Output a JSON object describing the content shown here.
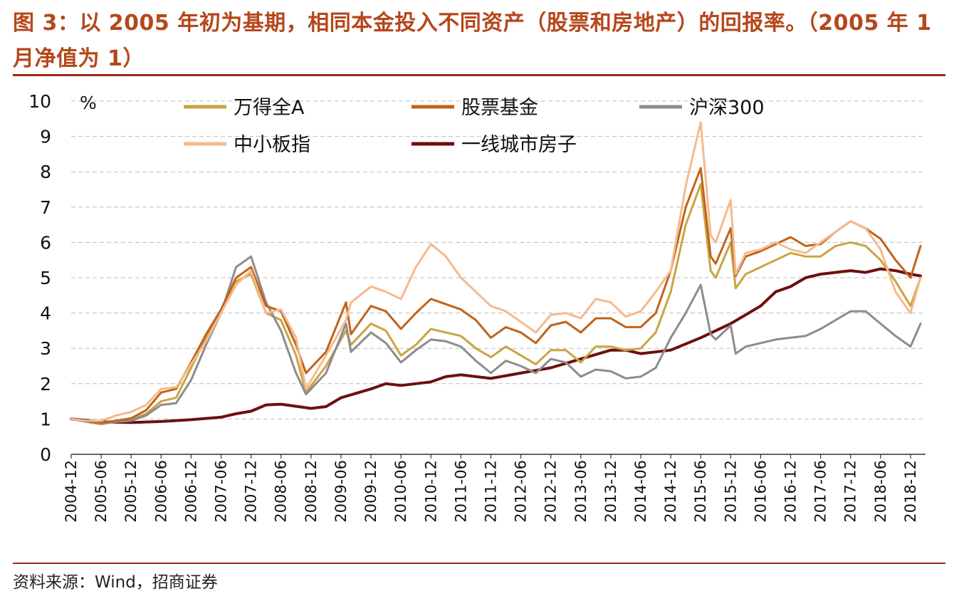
{
  "header": {
    "title": "图 3：以 2005 年初为基期，相同本金投入不同资产（股票和房地产）的回报率。（2005 年 1 月净值为 1）"
  },
  "footer": {
    "source": "资料来源：Wind，招商证券"
  },
  "chart_data": {
    "type": "line",
    "ylabel": "%",
    "ylim": [
      0,
      10
    ],
    "yticks": [
      0,
      1,
      2,
      3,
      4,
      5,
      6,
      7,
      8,
      9,
      10
    ],
    "xlim": [
      "2004-12",
      "2019-03"
    ],
    "xticks": [
      "2004-12",
      "2005-06",
      "2005-12",
      "2006-06",
      "2006-12",
      "2007-06",
      "2007-12",
      "2008-06",
      "2008-12",
      "2009-06",
      "2009-12",
      "2010-06",
      "2010-12",
      "2011-06",
      "2011-12",
      "2012-06",
      "2012-12",
      "2013-06",
      "2013-12",
      "2014-06",
      "2014-12",
      "2015-06",
      "2015-12",
      "2016-06",
      "2016-12",
      "2017-06",
      "2017-12",
      "2018-06",
      "2018-12"
    ],
    "grid": "horizontal",
    "legend_position": "top",
    "series": [
      {
        "name": "万得全A",
        "color": "#c9a441",
        "width": 3,
        "x": [
          "2004-12",
          "2005-03",
          "2005-06",
          "2005-09",
          "2005-12",
          "2006-03",
          "2006-06",
          "2006-09",
          "2006-12",
          "2007-03",
          "2007-06",
          "2007-09",
          "2007-12",
          "2008-03",
          "2008-06",
          "2008-09",
          "2008-11",
          "2009-03",
          "2009-07",
          "2009-08",
          "2009-12",
          "2010-03",
          "2010-06",
          "2010-09",
          "2010-12",
          "2011-03",
          "2011-06",
          "2011-09",
          "2011-12",
          "2012-03",
          "2012-06",
          "2012-09",
          "2012-12",
          "2013-03",
          "2013-06",
          "2013-09",
          "2013-12",
          "2014-03",
          "2014-06",
          "2014-09",
          "2014-12",
          "2015-03",
          "2015-06",
          "2015-08",
          "2015-09",
          "2015-12",
          "2016-01",
          "2016-03",
          "2016-06",
          "2016-09",
          "2016-12",
          "2017-03",
          "2017-06",
          "2017-09",
          "2017-12",
          "2018-03",
          "2018-06",
          "2018-09",
          "2018-12",
          "2019-02"
        ],
        "values": [
          1.0,
          0.92,
          0.85,
          0.93,
          0.98,
          1.15,
          1.5,
          1.6,
          2.45,
          3.3,
          4.0,
          4.9,
          5.1,
          4.0,
          3.8,
          2.8,
          1.75,
          2.5,
          3.5,
          3.1,
          3.7,
          3.5,
          2.8,
          3.1,
          3.55,
          3.45,
          3.35,
          3.0,
          2.75,
          3.05,
          2.8,
          2.55,
          2.95,
          2.95,
          2.6,
          3.05,
          3.05,
          2.95,
          3.0,
          3.45,
          4.6,
          6.5,
          7.65,
          5.2,
          5.0,
          6.0,
          4.7,
          5.1,
          5.3,
          5.5,
          5.7,
          5.6,
          5.6,
          5.9,
          6.0,
          5.9,
          5.5,
          4.9,
          4.2,
          5.0
        ]
      },
      {
        "name": "股票基金",
        "color": "#c0631a",
        "width": 3,
        "x": [
          "2004-12",
          "2005-03",
          "2005-06",
          "2005-09",
          "2005-12",
          "2006-03",
          "2006-06",
          "2006-09",
          "2006-12",
          "2007-03",
          "2007-06",
          "2007-09",
          "2007-12",
          "2008-03",
          "2008-06",
          "2008-09",
          "2008-11",
          "2009-03",
          "2009-07",
          "2009-08",
          "2009-12",
          "2010-03",
          "2010-06",
          "2010-09",
          "2010-12",
          "2011-03",
          "2011-06",
          "2011-09",
          "2011-12",
          "2012-03",
          "2012-06",
          "2012-09",
          "2012-12",
          "2013-03",
          "2013-06",
          "2013-09",
          "2013-12",
          "2014-03",
          "2014-06",
          "2014-09",
          "2014-12",
          "2015-03",
          "2015-06",
          "2015-08",
          "2015-09",
          "2015-12",
          "2016-01",
          "2016-03",
          "2016-06",
          "2016-09",
          "2016-12",
          "2017-03",
          "2017-06",
          "2017-09",
          "2017-12",
          "2018-03",
          "2018-06",
          "2018-09",
          "2018-12",
          "2019-02"
        ],
        "values": [
          1.0,
          0.95,
          0.9,
          0.95,
          1.02,
          1.25,
          1.75,
          1.85,
          2.6,
          3.4,
          4.1,
          5.0,
          5.3,
          4.2,
          4.05,
          3.1,
          2.3,
          2.9,
          4.3,
          3.4,
          4.2,
          4.05,
          3.55,
          4.0,
          4.4,
          4.25,
          4.1,
          3.8,
          3.3,
          3.6,
          3.45,
          3.15,
          3.65,
          3.75,
          3.45,
          3.85,
          3.85,
          3.6,
          3.6,
          4.0,
          5.2,
          7.0,
          8.1,
          5.6,
          5.4,
          6.4,
          5.05,
          5.6,
          5.75,
          5.95,
          6.15,
          5.9,
          5.95,
          6.3,
          6.6,
          6.4,
          6.1,
          5.5,
          5.0,
          5.9
        ]
      },
      {
        "name": "沪深300",
        "color": "#8c8c8c",
        "width": 3,
        "x": [
          "2004-12",
          "2005-03",
          "2005-06",
          "2005-09",
          "2005-12",
          "2006-03",
          "2006-06",
          "2006-09",
          "2006-12",
          "2007-03",
          "2007-06",
          "2007-09",
          "2007-12",
          "2008-03",
          "2008-06",
          "2008-09",
          "2008-11",
          "2009-03",
          "2009-07",
          "2009-08",
          "2009-12",
          "2010-03",
          "2010-06",
          "2010-09",
          "2010-12",
          "2011-03",
          "2011-06",
          "2011-09",
          "2011-12",
          "2012-03",
          "2012-06",
          "2012-09",
          "2012-12",
          "2013-03",
          "2013-06",
          "2013-09",
          "2013-12",
          "2014-03",
          "2014-06",
          "2014-09",
          "2014-12",
          "2015-03",
          "2015-06",
          "2015-08",
          "2015-09",
          "2015-12",
          "2016-01",
          "2016-03",
          "2016-06",
          "2016-09",
          "2016-12",
          "2017-03",
          "2017-06",
          "2017-09",
          "2017-12",
          "2018-03",
          "2018-06",
          "2018-09",
          "2018-12",
          "2019-02"
        ],
        "values": [
          1.0,
          0.93,
          0.88,
          0.92,
          0.95,
          1.1,
          1.4,
          1.45,
          2.1,
          3.1,
          4.0,
          5.3,
          5.6,
          4.3,
          3.5,
          2.3,
          1.7,
          2.3,
          3.7,
          2.9,
          3.45,
          3.15,
          2.6,
          2.95,
          3.25,
          3.2,
          3.05,
          2.65,
          2.3,
          2.65,
          2.5,
          2.3,
          2.7,
          2.6,
          2.2,
          2.4,
          2.35,
          2.15,
          2.2,
          2.45,
          3.3,
          4.0,
          4.8,
          3.4,
          3.25,
          3.65,
          2.85,
          3.05,
          3.15,
          3.25,
          3.3,
          3.35,
          3.55,
          3.8,
          4.05,
          4.05,
          3.7,
          3.35,
          3.05,
          3.7
        ]
      },
      {
        "name": "中小板指",
        "color": "#f6b98e",
        "width": 3,
        "x": [
          "2004-12",
          "2005-03",
          "2005-06",
          "2005-09",
          "2005-12",
          "2006-03",
          "2006-06",
          "2006-09",
          "2006-12",
          "2007-03",
          "2007-06",
          "2007-09",
          "2007-12",
          "2008-03",
          "2008-06",
          "2008-09",
          "2008-11",
          "2009-03",
          "2009-07",
          "2009-08",
          "2009-12",
          "2010-03",
          "2010-06",
          "2010-09",
          "2010-12",
          "2011-03",
          "2011-06",
          "2011-09",
          "2011-12",
          "2012-03",
          "2012-06",
          "2012-09",
          "2012-12",
          "2013-03",
          "2013-06",
          "2013-09",
          "2013-12",
          "2014-03",
          "2014-06",
          "2014-09",
          "2014-12",
          "2015-03",
          "2015-06",
          "2015-08",
          "2015-09",
          "2015-12",
          "2016-01",
          "2016-03",
          "2016-06",
          "2016-09",
          "2016-12",
          "2017-03",
          "2017-06",
          "2017-09",
          "2017-12",
          "2018-03",
          "2018-06",
          "2018-09",
          "2018-12",
          "2019-02"
        ],
        "values": [
          1.0,
          0.95,
          0.95,
          1.1,
          1.2,
          1.4,
          1.85,
          1.9,
          2.55,
          3.2,
          4.0,
          4.8,
          5.2,
          4.0,
          4.1,
          3.3,
          1.85,
          2.8,
          3.8,
          4.3,
          4.75,
          4.6,
          4.4,
          5.3,
          5.95,
          5.6,
          5.0,
          4.6,
          4.2,
          4.05,
          3.75,
          3.45,
          3.95,
          4.0,
          3.85,
          4.4,
          4.3,
          3.9,
          4.05,
          4.6,
          5.2,
          7.6,
          9.4,
          6.2,
          6.0,
          7.2,
          5.1,
          5.7,
          5.8,
          6.0,
          5.8,
          5.7,
          6.0,
          6.3,
          6.6,
          6.4,
          5.8,
          4.6,
          4.0,
          5.0
        ]
      },
      {
        "name": "一线城市房子",
        "color": "#6e0f0f",
        "width": 4,
        "x": [
          "2004-12",
          "2005-06",
          "2005-12",
          "2006-06",
          "2006-12",
          "2007-06",
          "2007-09",
          "2007-12",
          "2008-03",
          "2008-06",
          "2008-12",
          "2009-03",
          "2009-06",
          "2009-12",
          "2010-03",
          "2010-06",
          "2010-12",
          "2011-03",
          "2011-06",
          "2011-12",
          "2012-06",
          "2012-12",
          "2013-06",
          "2013-12",
          "2014-03",
          "2014-06",
          "2014-12",
          "2015-06",
          "2015-12",
          "2016-06",
          "2016-09",
          "2016-12",
          "2017-03",
          "2017-06",
          "2017-12",
          "2018-03",
          "2018-06",
          "2018-09",
          "2018-12",
          "2019-02"
        ],
        "values": [
          1.0,
          0.92,
          0.9,
          0.93,
          0.98,
          1.05,
          1.15,
          1.22,
          1.4,
          1.42,
          1.3,
          1.35,
          1.6,
          1.85,
          2.0,
          1.95,
          2.05,
          2.2,
          2.25,
          2.15,
          2.3,
          2.45,
          2.7,
          2.95,
          2.95,
          2.85,
          2.95,
          3.3,
          3.7,
          4.2,
          4.6,
          4.75,
          5.0,
          5.1,
          5.2,
          5.15,
          5.25,
          5.2,
          5.1,
          5.05
        ]
      }
    ]
  }
}
